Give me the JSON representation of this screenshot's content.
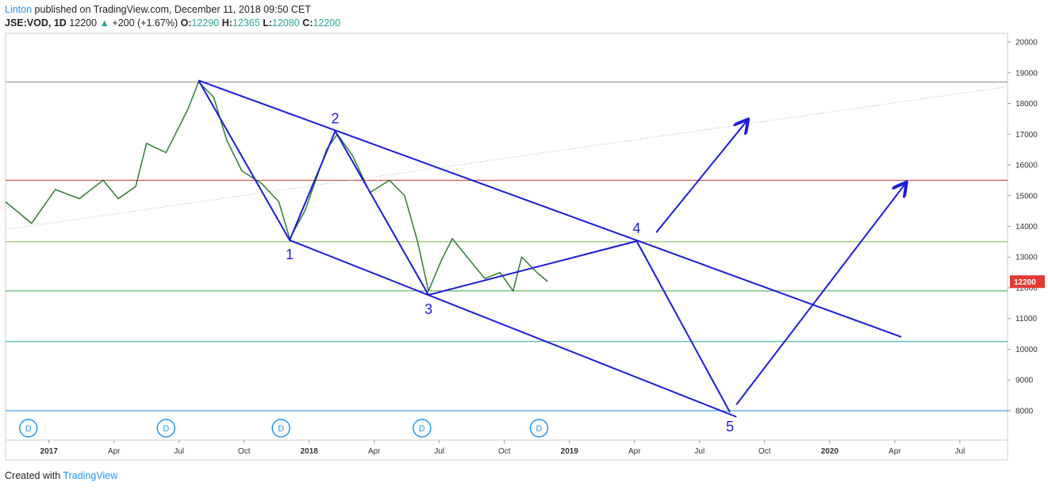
{
  "header": {
    "author": "Linton",
    "published": "published on TradingView.com, December 11, 2018 09:50 CET",
    "symbol": "JSE:VOD, 1D",
    "last": 12200,
    "arrow": "▲",
    "change": "+200 (+1.67%)",
    "o_label": "O:",
    "open": 12290,
    "h_label": "H:",
    "high": 12365,
    "l_label": "L:",
    "low": 12080,
    "c_label": "C:",
    "close": 12200
  },
  "footer": {
    "created": "Created with",
    "brand": "TradingView"
  },
  "chart_data": {
    "type": "line",
    "xlim": [
      -2,
      44.2
    ],
    "ylim": [
      7045,
      20284
    ],
    "xticks": [
      {
        "value": 0,
        "label": "2017"
      },
      {
        "value": 3,
        "label": "Apr"
      },
      {
        "value": 6,
        "label": "Jul"
      },
      {
        "value": 9,
        "label": "Oct"
      },
      {
        "value": 12,
        "label": "2018"
      },
      {
        "value": 15,
        "label": "Apr"
      },
      {
        "value": 18,
        "label": "Jul"
      },
      {
        "value": 21,
        "label": "Oct"
      },
      {
        "value": 24,
        "label": "2019"
      },
      {
        "value": 27,
        "label": "Apr"
      },
      {
        "value": 30,
        "label": "Jul"
      },
      {
        "value": 33,
        "label": "Oct"
      },
      {
        "value": 36,
        "label": "2020"
      },
      {
        "value": 39,
        "label": "Apr"
      },
      {
        "value": 42,
        "label": "Jul"
      }
    ],
    "yticks": [
      8000,
      9000,
      10000,
      11000,
      12000,
      13000,
      14000,
      15000,
      16000,
      17000,
      18000,
      19000,
      20000
    ],
    "series": [
      {
        "color": "#2e7d32",
        "x": [
          -2,
          -0.8,
          0.3,
          1.4,
          2.5,
          3.2,
          4.0,
          4.5,
          5.4,
          6.4,
          6.9,
          7.6,
          8.2,
          8.9,
          9.8,
          10.6,
          11.1,
          11.8,
          12.8,
          13.3,
          14.0,
          14.8,
          15.7,
          16.4,
          17.0,
          17.5,
          18.1,
          18.6,
          19.4,
          20.1,
          20.8,
          21.4,
          21.8,
          22.5,
          23.0
        ],
        "values": [
          14800,
          14100,
          15200,
          14900,
          15500,
          14900,
          15300,
          16700,
          16400,
          17800,
          18700,
          18200,
          16800,
          15800,
          15400,
          14800,
          13600,
          14500,
          16500,
          17000,
          16300,
          15100,
          15500,
          15000,
          13500,
          11900,
          12900,
          13600,
          12900,
          12300,
          12500,
          11900,
          13000,
          12500,
          12200
        ]
      }
    ],
    "levels": [
      {
        "value": 18700,
        "color": "#888888"
      },
      {
        "value": 15500,
        "color": "#c0392b"
      },
      {
        "value": 13500,
        "color": "#7cb342"
      },
      {
        "value": 11900,
        "color": "#43a047"
      },
      {
        "value": 10250,
        "color": "#26a69a"
      },
      {
        "value": 8000,
        "color": "#1e88e5"
      }
    ],
    "waves": {
      "color": "#1c1cd9",
      "labels": [
        "1",
        "2",
        "3",
        "4",
        "5"
      ],
      "x": [
        6.9,
        11.1,
        13.2,
        17.5,
        27.1,
        31.4
      ],
      "values": [
        18750,
        13550,
        17100,
        11770,
        13520,
        7950
      ]
    },
    "drawings": [
      {
        "x": [
          6.9,
          39.3
        ],
        "values": [
          18750,
          10400
        ]
      },
      {
        "x": [
          11.1,
          31.7
        ],
        "values": [
          13550,
          7800
        ]
      },
      {
        "x": [
          28.0,
          32.2
        ],
        "values": [
          13800,
          17450
        ],
        "arrow": true
      },
      {
        "x": [
          31.7,
          39.5
        ],
        "values": [
          8200,
          15400
        ],
        "arrow": true
      }
    ],
    "trend": {
      "x": [
        -2,
        44.05
      ],
      "values": [
        13900,
        18530
      ]
    },
    "events": {
      "x": [
        -0.95,
        5.4,
        10.7,
        17.2,
        22.6
      ],
      "labels": [
        "D",
        "D",
        "D",
        "D",
        "D"
      ]
    }
  }
}
